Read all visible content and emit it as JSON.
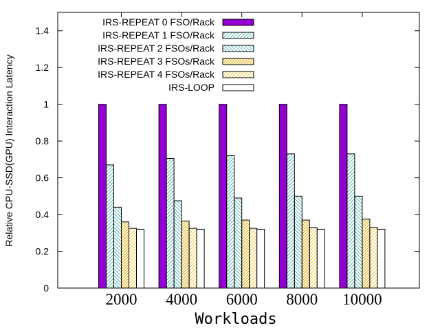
{
  "chart_data": {
    "type": "bar",
    "categories": [
      "2000",
      "4000",
      "6000",
      "8000",
      "10000"
    ],
    "series": [
      {
        "name": "IRS-REPEAT 0 FSO/Rack",
        "values": [
          1,
          1,
          1,
          1,
          1
        ]
      },
      {
        "name": "IRS-REPEAT 1 FSO/Rack",
        "values": [
          0.67,
          0.705,
          0.72,
          0.73,
          0.73
        ]
      },
      {
        "name": "IRS-REPEAT 2 FSOs/Rack",
        "values": [
          0.44,
          0.475,
          0.49,
          0.5,
          0.5
        ]
      },
      {
        "name": "IRS-REPEAT 3 FSOs/Rack",
        "values": [
          0.36,
          0.365,
          0.37,
          0.37,
          0.375
        ]
      },
      {
        "name": "IRS-REPEAT 4 FSOs/Rack",
        "values": [
          0.325,
          0.325,
          0.325,
          0.33,
          0.33
        ]
      },
      {
        "name": "IRS-LOOP",
        "values": [
          0.32,
          0.32,
          0.32,
          0.32,
          0.32
        ]
      }
    ],
    "xlabel": "Workloads",
    "ylabel": "Relative CPU-SSD(GPU) Interaction Latency",
    "ylim": [
      0,
      1.5
    ],
    "yticks": [
      "0",
      "0.2",
      "0.4",
      "0.6",
      "0.8",
      "1",
      "1.2",
      "1.4"
    ],
    "grid": false,
    "legend_position": "top-right",
    "colors": {
      "series0_fill": "#9400d3",
      "series1_pattern": "#5fb8b8",
      "series2_pattern": "#5fb8b8",
      "series3_pattern": "#e0a800",
      "series4_pattern": "#f0c840",
      "series5_fill": "#ffffff",
      "edge": "#000000"
    }
  }
}
